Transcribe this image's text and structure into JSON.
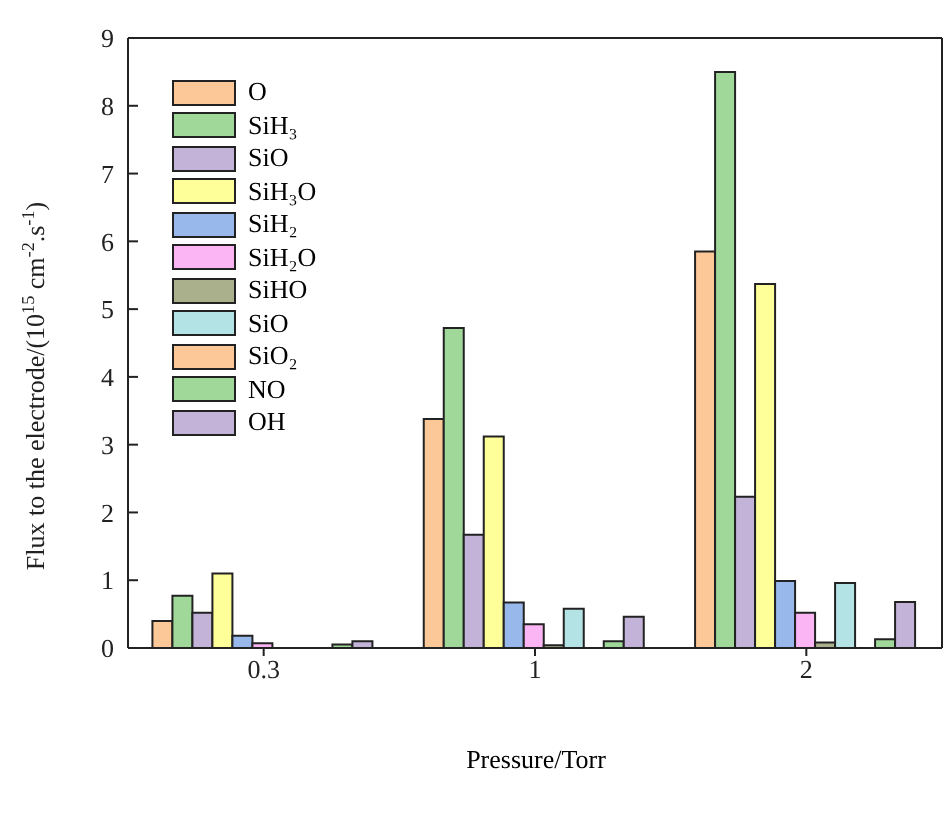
{
  "chart_data": {
    "type": "bar",
    "xlabel": "Pressure/Torr",
    "ylabel": "Flux to the electrode/(10$^{15}$ cm$^{-2}$.s$^{-1}$)",
    "categories": [
      "0.3",
      "1",
      "2"
    ],
    "series": [
      {
        "name": "O",
        "color": "#fdc897",
        "values": [
          0.4,
          3.38,
          5.85
        ]
      },
      {
        "name": "SiH₃",
        "color": "#a0d89a",
        "values": [
          0.77,
          4.72,
          8.5
        ]
      },
      {
        "name": "SiO",
        "color": "#c3b3d8",
        "values": [
          0.52,
          1.67,
          2.23
        ]
      },
      {
        "name": "SiH₃O",
        "color": "#ffff99",
        "values": [
          1.1,
          3.12,
          5.37
        ]
      },
      {
        "name": "SiH₂",
        "color": "#98b8ec",
        "values": [
          0.18,
          0.67,
          0.99
        ]
      },
      {
        "name": "SiH₂O",
        "color": "#fbb4f4",
        "values": [
          0.07,
          0.35,
          0.52
        ]
      },
      {
        "name": "SiHO",
        "color": "#aab08c",
        "values": [
          null,
          0.04,
          0.08
        ]
      },
      {
        "name": "SiO",
        "color": "#b3e3e5",
        "values": [
          null,
          0.58,
          0.96
        ]
      },
      {
        "name": "SiO₂",
        "color": "#fdc897",
        "values": [
          0,
          0,
          0
        ]
      },
      {
        "name": "NO",
        "color": "#a0d89a",
        "values": [
          0.05,
          0.1,
          0.13
        ]
      },
      {
        "name": "OH",
        "color": "#c3b3d8",
        "values": [
          0.1,
          0.46,
          0.68
        ]
      }
    ],
    "ylim": [
      0,
      9
    ],
    "yticks": [
      0,
      1,
      2,
      3,
      4,
      5,
      6,
      7,
      8,
      9
    ],
    "grid": false,
    "legend": "top left"
  }
}
